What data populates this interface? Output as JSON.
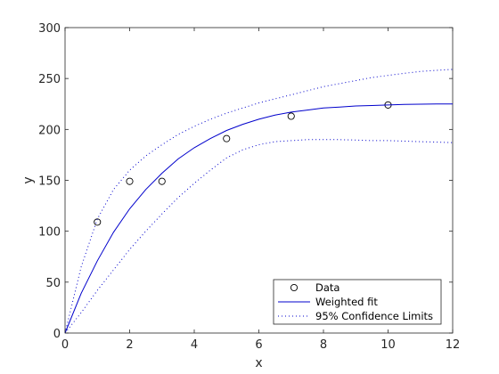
{
  "chart_data": {
    "type": "line",
    "title": "",
    "xlabel": "x",
    "ylabel": "y",
    "xlim": [
      0,
      12
    ],
    "ylim": [
      0,
      300
    ],
    "xticks": [
      0,
      2,
      4,
      6,
      8,
      10,
      12
    ],
    "yticks": [
      0,
      50,
      100,
      150,
      200,
      250,
      300
    ],
    "grid": false,
    "legend_position": "bottom-right",
    "series": [
      {
        "name": "Data",
        "style": "markers",
        "marker": "circle",
        "color": "#000000",
        "x": [
          1,
          2,
          3,
          5,
          7,
          10
        ],
        "y": [
          109,
          149,
          149,
          191,
          213,
          224
        ]
      },
      {
        "name": "Weighted fit",
        "style": "solid",
        "color": "#0000cc",
        "x": [
          0,
          0.5,
          1,
          1.5,
          2,
          2.5,
          3,
          3.5,
          4,
          4.5,
          5,
          5.5,
          6,
          6.5,
          7,
          7.5,
          8,
          8.5,
          9,
          9.5,
          10,
          10.5,
          11,
          11.5,
          12
        ],
        "y": [
          0,
          39,
          71,
          99,
          122,
          141,
          157,
          171,
          182,
          191,
          199,
          205,
          210,
          214,
          217,
          219,
          221,
          222,
          223,
          223.5,
          224,
          224.5,
          224.8,
          225,
          225
        ]
      },
      {
        "name": "95% Confidence Limits",
        "style": "dotted",
        "color": "#0000cc",
        "x": [
          0,
          0.5,
          1,
          1.5,
          2,
          2.5,
          3,
          3.5,
          4,
          4.5,
          5,
          5.5,
          6,
          6.5,
          7,
          7.5,
          8,
          8.5,
          9,
          9.5,
          10,
          10.5,
          11,
          11.5,
          12
        ],
        "y": [
          0,
          65,
          112,
          141,
          160,
          174,
          185,
          195,
          203,
          210,
          216,
          221,
          226,
          230,
          234,
          238,
          242,
          245,
          248,
          251,
          253,
          255,
          257,
          258,
          259
        ]
      },
      {
        "name": "",
        "style": "dotted",
        "color": "#0000cc",
        "x": [
          0,
          0.5,
          1,
          1.5,
          2,
          2.5,
          3,
          3.5,
          4,
          4.5,
          5,
          5.5,
          6,
          6.5,
          7,
          7.5,
          8,
          8.5,
          9,
          9.5,
          10,
          10.5,
          11,
          11.5,
          12
        ],
        "y": [
          0,
          20,
          42,
          62,
          82,
          100,
          117,
          133,
          147,
          160,
          172,
          180,
          185,
          188,
          189,
          190,
          190,
          190,
          189.5,
          189,
          189,
          188.5,
          188,
          187.5,
          187
        ]
      }
    ]
  }
}
